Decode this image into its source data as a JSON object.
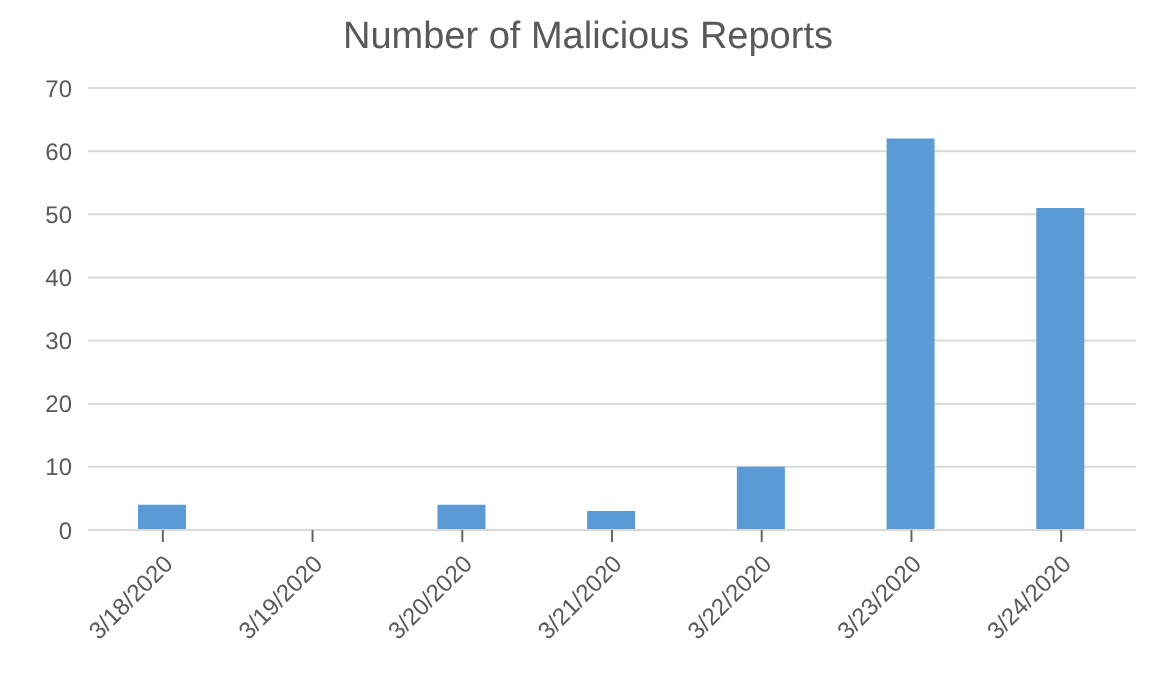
{
  "chart_data": {
    "type": "bar",
    "title": "Number of Malicious Reports",
    "categories": [
      "3/18/2020",
      "3/19/2020",
      "3/20/2020",
      "3/21/2020",
      "3/22/2020",
      "3/23/2020",
      "3/24/2020"
    ],
    "values": [
      4,
      0,
      4,
      3,
      10,
      62,
      51
    ],
    "color": "#5b9bd5",
    "ylim": [
      0,
      70
    ],
    "yticks": [
      0,
      10,
      20,
      30,
      40,
      50,
      60,
      70
    ],
    "grid": "y"
  }
}
